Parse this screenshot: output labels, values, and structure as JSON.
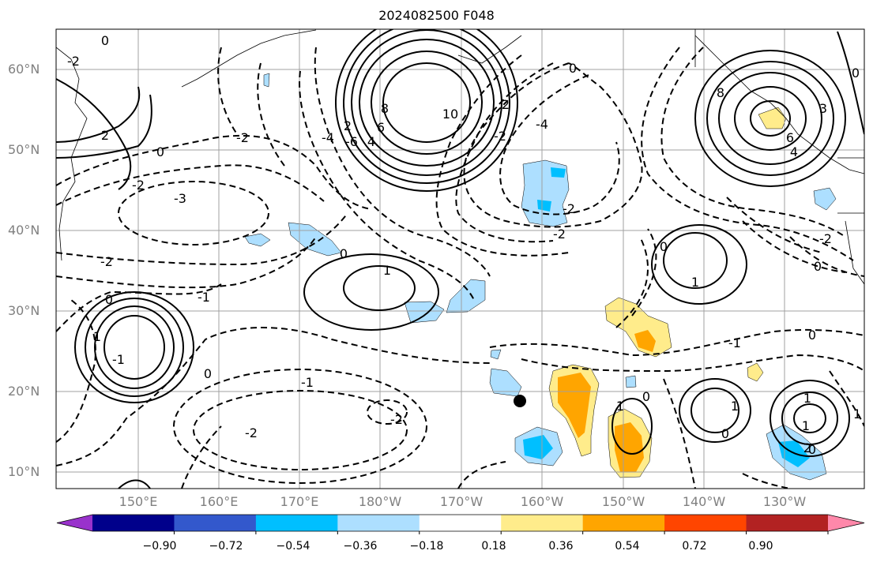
{
  "title": "2024082500 F048",
  "latitude_labels": [
    "60°N",
    "50°N",
    "40°N",
    "30°N",
    "20°N",
    "10°N"
  ],
  "longitude_labels": [
    "150°E",
    "160°E",
    "170°E",
    "180°W",
    "170°W",
    "160°W",
    "150°W",
    "140°W",
    "130°W"
  ],
  "colorbar": {
    "ticks": [
      "−0.90",
      "−0.72",
      "−0.54",
      "−0.36",
      "−0.18",
      "0.18",
      "0.36",
      "0.54",
      "0.72",
      "0.90"
    ],
    "colors": [
      "#9932cc",
      "#00008b",
      "#3358cc",
      "#00bfff",
      "#addfff",
      "#ffffff",
      "#ffec8b",
      "#ffa500",
      "#ff4500",
      "#b22222",
      "#ff88aa"
    ]
  },
  "contour_labels": [
    "0",
    "-2",
    "2",
    "-3",
    "-2",
    "1",
    "-1",
    "1",
    "0",
    "-2",
    "10",
    "8",
    "6",
    "4",
    "2",
    "0",
    "-2",
    "-4",
    "-6",
    "0",
    "-4",
    "-2",
    "0",
    "-2",
    "2",
    "4",
    "8",
    "6",
    "3",
    "0",
    "-2",
    "0",
    "-2",
    "1",
    "0",
    "-1",
    "0",
    "-2",
    "-2",
    "0",
    "-1",
    "1",
    "1",
    "0",
    "1",
    "0",
    "1",
    "2",
    "0",
    "1",
    "-1"
  ],
  "marker": "storm-center-dot"
}
